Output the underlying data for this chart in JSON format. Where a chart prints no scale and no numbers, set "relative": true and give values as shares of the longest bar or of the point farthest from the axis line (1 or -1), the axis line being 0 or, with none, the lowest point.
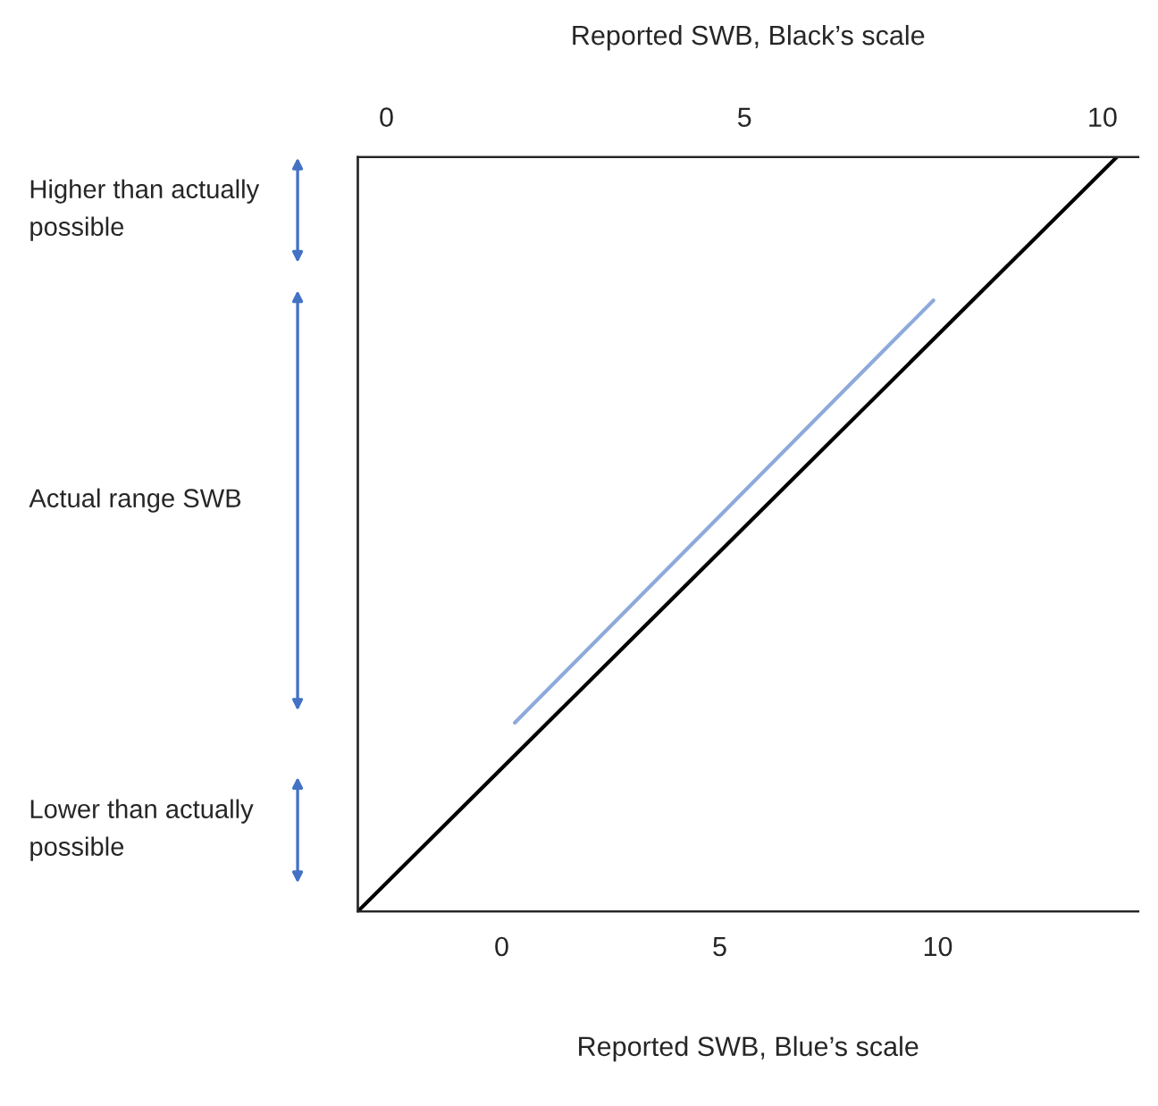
{
  "chart_data": {
    "type": "line",
    "relative": true,
    "xlabel": "Reported SWB, Blue’s scale",
    "x2label": "Reported SWB, Black’s scale",
    "xlim": [
      -3.3,
      14.6
    ],
    "xticks": [
      0,
      5,
      10
    ],
    "x2lim": [
      -0.4,
      10.5
    ],
    "x2ticks": [
      0,
      5,
      10
    ],
    "series": [
      {
        "color": "#000000",
        "axis": "x2",
        "x": [
          -0.4,
          10.2
        ],
        "values": [
          0,
          1
        ]
      },
      {
        "color": "#8eaadb",
        "x": [
          0.3,
          9.9
        ],
        "values": [
          0.25,
          0.81
        ]
      }
    ],
    "annotations": [
      "Higher than actually possible",
      "Actual range SWB",
      "Lower than actually possible"
    ],
    "tick_labels": "x",
    "grid": false,
    "legend": false,
    "marker": "none",
    "line_style": "solid"
  }
}
